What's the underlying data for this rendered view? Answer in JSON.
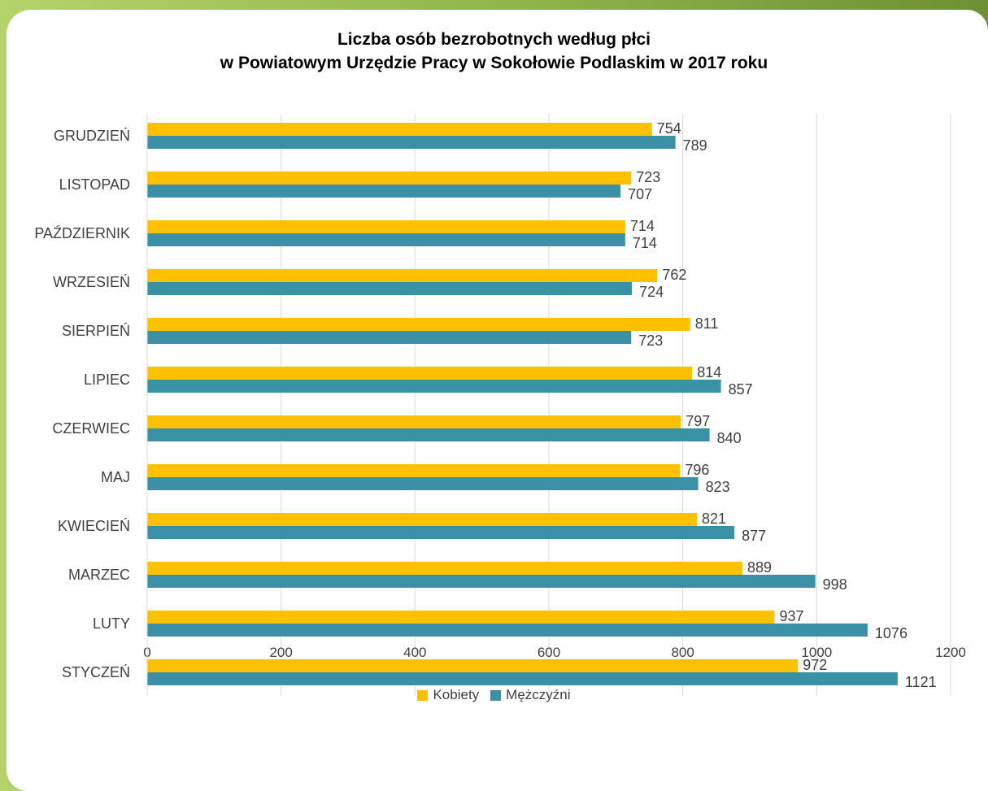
{
  "colors": {
    "kobiety": "#FFC000",
    "mezczyzni": "#3A91A6",
    "grid": "#D9D9D9",
    "text": "#404040"
  },
  "chart_data": {
    "type": "bar",
    "orientation": "horizontal",
    "title_lines": [
      "Liczba osób bezrobotnych według płci",
      "w Powiatowym Urzędzie Pracy w Sokołowie Podlaskim w 2017 roku"
    ],
    "categories": [
      "STYCZEŃ",
      "LUTY",
      "MARZEC",
      "KWIECIEŃ",
      "MAJ",
      "CZERWIEC",
      "LIPIEC",
      "SIERPIEŃ",
      "WRZESIEŃ",
      "PAŹDZIERNIK",
      "LISTOPAD",
      "GRUDZIEŃ"
    ],
    "series": [
      {
        "name": "Kobiety",
        "color": "#FFC000",
        "values": [
          972,
          937,
          889,
          821,
          796,
          797,
          814,
          811,
          762,
          714,
          723,
          754
        ]
      },
      {
        "name": "Mężczyźni",
        "color": "#3A91A6",
        "values": [
          1121,
          1076,
          998,
          877,
          823,
          840,
          857,
          723,
          724,
          714,
          707,
          789
        ]
      }
    ],
    "xlim": [
      0,
      1200
    ],
    "xticks": [
      0,
      200,
      400,
      600,
      800,
      1000,
      1200
    ],
    "grid": true,
    "legend": "bottom",
    "data_labels": true
  }
}
